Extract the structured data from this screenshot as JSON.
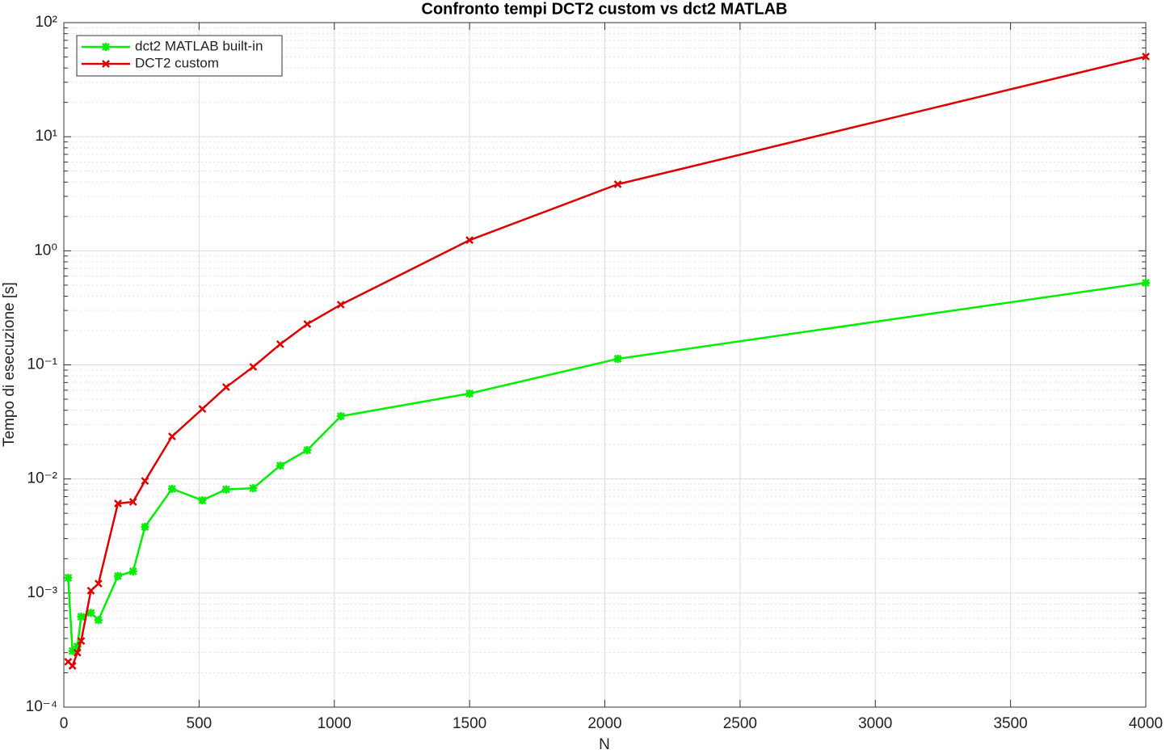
{
  "chart_data": {
    "type": "line",
    "title": "Confronto tempi DCT2 custom vs dct2 MATLAB",
    "xlabel": "N",
    "ylabel": "Tempo di esecuzione [s]",
    "x": [
      16,
      32,
      50,
      64,
      100,
      128,
      200,
      256,
      300,
      400,
      512,
      600,
      700,
      800,
      900,
      1024,
      1500,
      2048,
      4000
    ],
    "series": [
      {
        "name": "dct2 MATLAB built-in",
        "color": "#00ee00",
        "marker": "asterisk",
        "values": [
          0.00136,
          0.00031,
          0.00034,
          0.00062,
          0.00067,
          0.00058,
          0.00141,
          0.00155,
          0.0038,
          0.0082,
          0.0065,
          0.0081,
          0.0083,
          0.0131,
          0.0179,
          0.0355,
          0.0561,
          0.113,
          0.524
        ]
      },
      {
        "name": "DCT2 custom",
        "color": "#dd0000",
        "marker": "x",
        "values": [
          0.00025,
          0.00023,
          0.0003,
          0.00038,
          0.00105,
          0.00121,
          0.0061,
          0.0063,
          0.0096,
          0.0236,
          0.0411,
          0.0638,
          0.096,
          0.152,
          0.228,
          0.337,
          1.24,
          3.83,
          50.4
        ]
      }
    ],
    "xlim": [
      0,
      4000
    ],
    "xticks": [
      0,
      500,
      1000,
      1500,
      2000,
      2500,
      3000,
      3500,
      4000
    ],
    "ylim": [
      0.0001,
      100
    ],
    "ylog": true,
    "yticks": [
      {
        "value": 0.0001,
        "label": "10⁻⁴"
      },
      {
        "value": 0.001,
        "label": "10⁻³"
      },
      {
        "value": 0.01,
        "label": "10⁻²"
      },
      {
        "value": 0.1,
        "label": "10⁻¹"
      },
      {
        "value": 1,
        "label": "10⁰"
      },
      {
        "value": 10,
        "label": "10¹"
      },
      {
        "value": 100,
        "label": "10²"
      }
    ],
    "grid": true,
    "legend": "upper left"
  }
}
